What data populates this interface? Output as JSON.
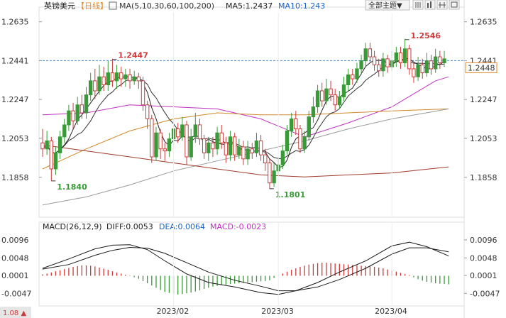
{
  "header": {
    "symbol": "英镑美元",
    "period": "【日线】",
    "ma_label": "MA(5,10,30,60,100,200)",
    "ma5": "MA5:1.2437",
    "ma10": "MA10:1.243",
    "theme_button": "全部主题▼",
    "icons": [
      "grid-icon",
      "bar-chart-icon",
      "table-icon",
      "layout-icon"
    ]
  },
  "macd_header": {
    "label": "MACD(26,12,9)",
    "diff": "DIFF:0.0053",
    "dea": "DEA:0.0064",
    "macd": "MACD:-0.0023"
  },
  "footer": {
    "left_label": "1.08 ▲"
  },
  "colors": {
    "up": "#3a9a3a",
    "down": "#cc3b3b",
    "ma5": "#222222",
    "ma10": "#333333",
    "ma30": "#c030c0",
    "ma60": "#d08a2a",
    "ma100": "#999999",
    "ma200": "#a03a2a",
    "dash": "#4a8fd0",
    "accent": "#e38a2a"
  },
  "chart_data": [
    {
      "type": "candlestick",
      "name": "price",
      "y_ticks": [
        "1.2635",
        "1.2441",
        "1.2247",
        "1.2053",
        "1.1858"
      ],
      "ylim": [
        1.168,
        1.268
      ],
      "current_price": "1.2448",
      "current_level": 1.2441,
      "x_labels": [
        "2023/02",
        "2023/03",
        "2023/04"
      ],
      "x_label_index": [
        30,
        54,
        80
      ],
      "annotations": [
        {
          "text": "1.2447",
          "index": 16,
          "value": 1.2447,
          "color": "#cc3b3b"
        },
        {
          "text": "1.1840",
          "index": 2,
          "value": 1.184,
          "color": "#3a9a3a"
        },
        {
          "text": "1.1801",
          "index": 52,
          "value": 1.1801,
          "color": "#3a9a3a"
        },
        {
          "text": "1.2546",
          "index": 83,
          "value": 1.2546,
          "color": "#cc3b3b"
        }
      ],
      "candles": [
        [
          1.203,
          1.2,
          1.21,
          1.196
        ],
        [
          1.2,
          1.204,
          1.209,
          1.197
        ],
        [
          1.204,
          1.19,
          1.206,
          1.184
        ],
        [
          1.19,
          1.198,
          1.201,
          1.187
        ],
        [
          1.198,
          1.206,
          1.209,
          1.195
        ],
        [
          1.206,
          1.212,
          1.215,
          1.203
        ],
        [
          1.212,
          1.219,
          1.222,
          1.209
        ],
        [
          1.219,
          1.214,
          1.223,
          1.21
        ],
        [
          1.214,
          1.222,
          1.226,
          1.212
        ],
        [
          1.222,
          1.218,
          1.227,
          1.215
        ],
        [
          1.218,
          1.227,
          1.231,
          1.215
        ],
        [
          1.227,
          1.234,
          1.238,
          1.224
        ],
        [
          1.234,
          1.229,
          1.24,
          1.225
        ],
        [
          1.229,
          1.236,
          1.242,
          1.227
        ],
        [
          1.236,
          1.232,
          1.241,
          1.229
        ],
        [
          1.232,
          1.238,
          1.244,
          1.229
        ],
        [
          1.238,
          1.234,
          1.245,
          1.231
        ],
        [
          1.234,
          1.238,
          1.242,
          1.23
        ],
        [
          1.238,
          1.235,
          1.241,
          1.231
        ],
        [
          1.235,
          1.237,
          1.24,
          1.231
        ],
        [
          1.237,
          1.234,
          1.24,
          1.23
        ],
        [
          1.234,
          1.236,
          1.239,
          1.232
        ],
        [
          1.236,
          1.234,
          1.238,
          1.23
        ],
        [
          1.234,
          1.222,
          1.236,
          1.219
        ],
        [
          1.222,
          1.215,
          1.224,
          1.21
        ],
        [
          1.215,
          1.196,
          1.217,
          1.193
        ],
        [
          1.196,
          1.208,
          1.211,
          1.194
        ],
        [
          1.208,
          1.2,
          1.21,
          1.195
        ],
        [
          1.2,
          1.199,
          1.203,
          1.194
        ],
        [
          1.199,
          1.205,
          1.208,
          1.196
        ],
        [
          1.205,
          1.21,
          1.213,
          1.202
        ],
        [
          1.21,
          1.206,
          1.213,
          1.203
        ],
        [
          1.206,
          1.212,
          1.216,
          1.204
        ],
        [
          1.212,
          1.196,
          1.214,
          1.192
        ],
        [
          1.196,
          1.206,
          1.21,
          1.194
        ],
        [
          1.206,
          1.212,
          1.218,
          1.203
        ],
        [
          1.212,
          1.205,
          1.215,
          1.202
        ],
        [
          1.205,
          1.198,
          1.207,
          1.195
        ],
        [
          1.198,
          1.203,
          1.206,
          1.194
        ],
        [
          1.203,
          1.2,
          1.206,
          1.196
        ],
        [
          1.2,
          1.208,
          1.211,
          1.197
        ],
        [
          1.208,
          1.203,
          1.212,
          1.2
        ],
        [
          1.203,
          1.197,
          1.206,
          1.193
        ],
        [
          1.197,
          1.206,
          1.209,
          1.194
        ],
        [
          1.206,
          1.197,
          1.208,
          1.194
        ],
        [
          1.197,
          1.201,
          1.205,
          1.195
        ],
        [
          1.201,
          1.195,
          1.204,
          1.192
        ],
        [
          1.195,
          1.2,
          1.204,
          1.192
        ],
        [
          1.2,
          1.198,
          1.203,
          1.195
        ],
        [
          1.198,
          1.204,
          1.208,
          1.196
        ],
        [
          1.204,
          1.197,
          1.207,
          1.194
        ],
        [
          1.197,
          1.193,
          1.2,
          1.189
        ],
        [
          1.193,
          1.183,
          1.195,
          1.18
        ],
        [
          1.183,
          1.189,
          1.193,
          1.181
        ],
        [
          1.189,
          1.192,
          1.196,
          1.187
        ],
        [
          1.192,
          1.199,
          1.202,
          1.19
        ],
        [
          1.199,
          1.209,
          1.212,
          1.197
        ],
        [
          1.209,
          1.215,
          1.218,
          1.206
        ],
        [
          1.215,
          1.21,
          1.219,
          1.207
        ],
        [
          1.21,
          1.2,
          1.212,
          1.198
        ],
        [
          1.2,
          1.206,
          1.209,
          1.198
        ],
        [
          1.206,
          1.216,
          1.219,
          1.204
        ],
        [
          1.216,
          1.221,
          1.226,
          1.213
        ],
        [
          1.221,
          1.229,
          1.232,
          1.218
        ],
        [
          1.229,
          1.224,
          1.233,
          1.221
        ],
        [
          1.224,
          1.23,
          1.235,
          1.222
        ],
        [
          1.23,
          1.227,
          1.234,
          1.224
        ],
        [
          1.227,
          1.222,
          1.23,
          1.219
        ],
        [
          1.222,
          1.226,
          1.229,
          1.22
        ],
        [
          1.226,
          1.232,
          1.236,
          1.224
        ],
        [
          1.232,
          1.237,
          1.24,
          1.229
        ],
        [
          1.237,
          1.235,
          1.24,
          1.232
        ],
        [
          1.235,
          1.24,
          1.243,
          1.233
        ],
        [
          1.24,
          1.244,
          1.247,
          1.237
        ],
        [
          1.244,
          1.25,
          1.253,
          1.241
        ],
        [
          1.25,
          1.246,
          1.253,
          1.243
        ],
        [
          1.246,
          1.242,
          1.249,
          1.239
        ],
        [
          1.242,
          1.239,
          1.245,
          1.236
        ],
        [
          1.239,
          1.245,
          1.248,
          1.236
        ],
        [
          1.245,
          1.241,
          1.247,
          1.238
        ],
        [
          1.241,
          1.244,
          1.249,
          1.239
        ],
        [
          1.244,
          1.248,
          1.251,
          1.241
        ],
        [
          1.248,
          1.243,
          1.251,
          1.24
        ],
        [
          1.243,
          1.25,
          1.255,
          1.241
        ],
        [
          1.25,
          1.24,
          1.252,
          1.237
        ],
        [
          1.24,
          1.236,
          1.243,
          1.233
        ],
        [
          1.236,
          1.242,
          1.246,
          1.234
        ],
        [
          1.242,
          1.238,
          1.245,
          1.235
        ],
        [
          1.238,
          1.244,
          1.248,
          1.236
        ],
        [
          1.244,
          1.24,
          1.247,
          1.237
        ],
        [
          1.24,
          1.246,
          1.25,
          1.238
        ],
        [
          1.246,
          1.243,
          1.249,
          1.24
        ],
        [
          1.243,
          1.245,
          1.249,
          1.241
        ]
      ],
      "moving_averages": [
        {
          "key": "ma30",
          "points": [
            [
              0,
              1.217
            ],
            [
              10,
              1.218
            ],
            [
              20,
              1.222
            ],
            [
              30,
              1.221
            ],
            [
              40,
              1.22
            ],
            [
              50,
              1.215
            ],
            [
              60,
              1.206
            ],
            [
              70,
              1.213
            ],
            [
              80,
              1.221
            ],
            [
              90,
              1.234
            ],
            [
              93,
              1.236
            ]
          ]
        },
        {
          "key": "ma60",
          "points": [
            [
              0,
              1.19
            ],
            [
              10,
              1.2
            ],
            [
              20,
              1.209
            ],
            [
              30,
              1.215
            ],
            [
              40,
              1.218
            ],
            [
              50,
              1.217
            ],
            [
              60,
              1.217
            ],
            [
              70,
              1.218
            ],
            [
              80,
              1.219
            ],
            [
              93,
              1.22
            ]
          ]
        },
        {
          "key": "ma100",
          "points": [
            [
              0,
              1.172
            ],
            [
              10,
              1.176
            ],
            [
              20,
              1.182
            ],
            [
              30,
              1.189
            ],
            [
              40,
              1.194
            ],
            [
              50,
              1.199
            ],
            [
              60,
              1.204
            ],
            [
              70,
              1.21
            ],
            [
              80,
              1.215
            ],
            [
              93,
              1.22
            ]
          ]
        },
        {
          "key": "ma200",
          "points": [
            [
              0,
              1.202
            ],
            [
              10,
              1.199
            ],
            [
              20,
              1.196
            ],
            [
              30,
              1.193
            ],
            [
              40,
              1.19
            ],
            [
              50,
              1.187
            ],
            [
              60,
              1.186
            ],
            [
              70,
              1.187
            ],
            [
              80,
              1.188
            ],
            [
              93,
              1.191
            ]
          ]
        }
      ]
    },
    {
      "type": "macd",
      "name": "macd",
      "y_ticks": [
        "0.0096",
        "0.0048",
        "0.0001",
        "-0.0047"
      ],
      "ylim": [
        -0.0075,
        0.0115
      ],
      "diff": [
        [
          0,
          0.002
        ],
        [
          6,
          0.0045
        ],
        [
          12,
          0.0072
        ],
        [
          16,
          0.0082
        ],
        [
          20,
          0.0083
        ],
        [
          24,
          0.007
        ],
        [
          28,
          0.004
        ],
        [
          33,
          0.0005
        ],
        [
          38,
          -0.0018
        ],
        [
          44,
          -0.003
        ],
        [
          50,
          -0.0045
        ],
        [
          54,
          -0.005
        ],
        [
          58,
          -0.004
        ],
        [
          63,
          -0.0018
        ],
        [
          68,
          0.001
        ],
        [
          74,
          0.004
        ],
        [
          80,
          0.008
        ],
        [
          84,
          0.009
        ],
        [
          88,
          0.0078
        ],
        [
          93,
          0.0053
        ]
      ],
      "dea": [
        [
          0,
          0.0018
        ],
        [
          6,
          0.003
        ],
        [
          12,
          0.0055
        ],
        [
          16,
          0.0068
        ],
        [
          20,
          0.0076
        ],
        [
          24,
          0.0074
        ],
        [
          28,
          0.006
        ],
        [
          33,
          0.0035
        ],
        [
          38,
          0.001
        ],
        [
          44,
          -0.0012
        ],
        [
          50,
          -0.0028
        ],
        [
          54,
          -0.004
        ],
        [
          58,
          -0.004
        ],
        [
          63,
          -0.003
        ],
        [
          68,
          -0.001
        ],
        [
          74,
          0.002
        ],
        [
          80,
          0.0058
        ],
        [
          84,
          0.0075
        ],
        [
          88,
          0.0075
        ],
        [
          93,
          0.0064
        ]
      ],
      "histogram": [
        0.0004,
        0.0006,
        0.0009,
        0.0012,
        0.0015,
        0.0018,
        0.0021,
        0.0024,
        0.0026,
        0.0028,
        0.0028,
        0.0027,
        0.0025,
        0.0022,
        0.0019,
        0.0016,
        0.0012,
        0.0009,
        0.0006,
        0.0003,
        0.0001,
        -0.0004,
        -0.0008,
        -0.0014,
        -0.002,
        -0.0026,
        -0.0032,
        -0.0038,
        -0.0043,
        -0.0046,
        -0.0048,
        -0.005,
        -0.0049,
        -0.0047,
        -0.0045,
        -0.0042,
        -0.0039,
        -0.0035,
        -0.0032,
        -0.0029,
        -0.0027,
        -0.0025,
        -0.0024,
        -0.0022,
        -0.0021,
        -0.002,
        -0.0019,
        -0.0018,
        -0.0017,
        -0.0016,
        -0.0015,
        -0.0014,
        -0.0012,
        -0.0006,
        0.0001,
        0.0006,
        0.0011,
        0.0016,
        0.002,
        0.0024,
        0.0027,
        0.003,
        0.0032,
        0.0034,
        0.0035,
        0.0035,
        0.0034,
        0.0033,
        0.0032,
        0.0031,
        0.003,
        0.0029,
        0.0028,
        0.0027,
        0.0026,
        0.0025,
        0.0024,
        0.0022,
        0.002,
        0.0017,
        0.0014,
        0.0011,
        0.0008,
        0.0005,
        0.0002,
        -0.0004,
        -0.0009,
        -0.0013,
        -0.0016,
        -0.0018,
        -0.002,
        -0.0021,
        -0.0022,
        -0.0023
      ]
    }
  ]
}
